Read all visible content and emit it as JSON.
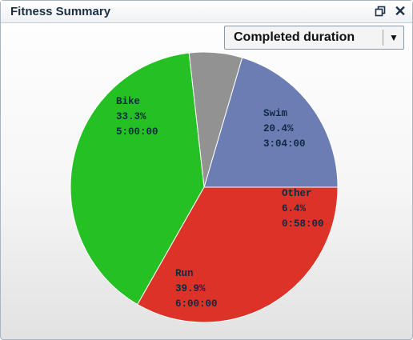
{
  "window": {
    "title": "Fitness Summary",
    "restore_icon": "restore-window-icon",
    "close_icon": "close-icon",
    "close_glyph": "✕"
  },
  "dropdown": {
    "selected": "Completed duration",
    "arrow_glyph": "▼"
  },
  "colors": {
    "bike": "#dc3227",
    "run": "#24c024",
    "swim": "#6b7db3",
    "other": "#929292"
  },
  "chart_data": {
    "type": "pie",
    "title": "",
    "slices": [
      {
        "name": "Swim",
        "percent": 20.4,
        "percent_label": "20.4%",
        "value": "3:04:00",
        "color": "#6b7db3"
      },
      {
        "name": "Other",
        "percent": 6.4,
        "percent_label": "6.4%",
        "value": "0:58:00",
        "color": "#929292"
      },
      {
        "name": "Run",
        "percent": 39.9,
        "percent_label": "39.9%",
        "value": "6:00:00",
        "color": "#24c024"
      },
      {
        "name": "Bike",
        "percent": 33.3,
        "percent_label": "33.3%",
        "value": "5:00:00",
        "color": "#dc3227"
      }
    ]
  }
}
